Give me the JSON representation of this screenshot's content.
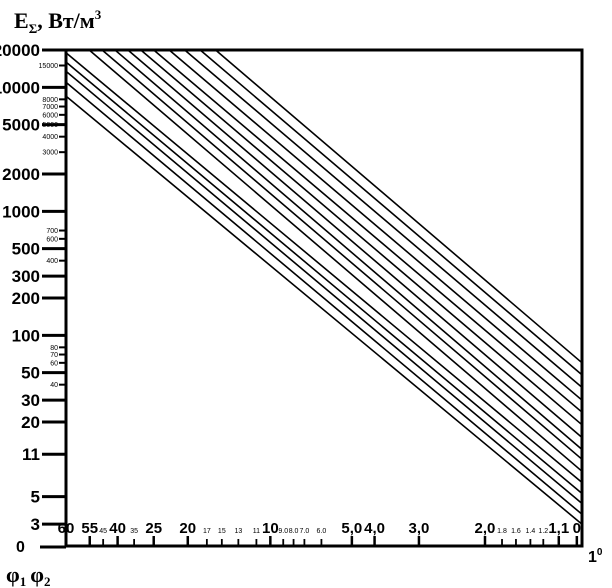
{
  "chart_data": {
    "type": "line",
    "title": "",
    "ylabel": {
      "main": "E",
      "sub": "Σ",
      "unit": ", Вт/м",
      "sup": "3"
    },
    "xlabel": {
      "phi1": "φ",
      "sub1": "1",
      "phi2": "φ",
      "sub2": "2"
    },
    "x_end_label": {
      "base": "1",
      "sup": "0"
    },
    "y_zero_label": "0",
    "yscale": "log",
    "ylim": [
      2,
      20000
    ],
    "xlim": [
      0,
      1
    ],
    "y_ticks_major": [
      "20000",
      "10000",
      "5000",
      "2000",
      "1000",
      "500",
      "300",
      "200",
      "100",
      "50",
      "30",
      "20",
      "11",
      "5",
      "3"
    ],
    "y_ticks_minor": [
      "15000",
      "8000",
      "7000",
      "6000",
      "5000",
      "4000",
      "3000",
      "700",
      "600",
      "400",
      "80",
      "70",
      "60",
      "40"
    ],
    "x_ticks": [
      {
        "label": "60",
        "x": 0.0,
        "size": "big"
      },
      {
        "label": "55",
        "x": 0.046,
        "size": "big"
      },
      {
        "label": "45",
        "x": 0.072,
        "size": "small"
      },
      {
        "label": "40",
        "x": 0.1,
        "size": "big"
      },
      {
        "label": "35",
        "x": 0.132,
        "size": "small"
      },
      {
        "label": "25",
        "x": 0.17,
        "size": "big"
      },
      {
        "label": "20",
        "x": 0.236,
        "size": "big"
      },
      {
        "label": "17",
        "x": 0.273,
        "size": "small"
      },
      {
        "label": "15",
        "x": 0.302,
        "size": "small"
      },
      {
        "label": "13",
        "x": 0.334,
        "size": "small"
      },
      {
        "label": "11",
        "x": 0.369,
        "size": "small"
      },
      {
        "label": "10",
        "x": 0.396,
        "size": "big"
      },
      {
        "label": "9.0",
        "x": 0.421,
        "size": "small"
      },
      {
        "label": "8.0",
        "x": 0.441,
        "size": "small"
      },
      {
        "label": "7.0",
        "x": 0.462,
        "size": "small"
      },
      {
        "label": "6.0",
        "x": 0.495,
        "size": "small"
      },
      {
        "label": "5,0",
        "x": 0.554,
        "size": "big"
      },
      {
        "label": "4,0",
        "x": 0.598,
        "size": "big"
      },
      {
        "label": "3,0",
        "x": 0.684,
        "size": "big"
      },
      {
        "label": "2,0",
        "x": 0.812,
        "size": "big"
      },
      {
        "label": "1.8",
        "x": 0.845,
        "size": "small"
      },
      {
        "label": "1.6",
        "x": 0.872,
        "size": "small"
      },
      {
        "label": "1.4",
        "x": 0.9,
        "size": "small"
      },
      {
        "label": "1.2",
        "x": 0.925,
        "size": "small"
      },
      {
        "label": "1,1",
        "x": 0.955,
        "size": "big"
      },
      {
        "label": "0",
        "x": 0.99,
        "size": "big"
      }
    ],
    "series_count": 15,
    "series_note_y_at_left": [
      20000,
      20000,
      20000,
      20000,
      20000,
      20000,
      20000,
      20000,
      20000,
      20000,
      19000,
      16000,
      13500,
      11000,
      8500
    ],
    "series_note_y_at_right": [
      60,
      48,
      38,
      30,
      24,
      19,
      15,
      12,
      10,
      8,
      6.5,
      5.3,
      4.4,
      3.6,
      3.0
    ],
    "series": [
      {
        "x": [
          0.29,
          1.0
        ],
        "y": [
          20000,
          60
        ]
      },
      {
        "x": [
          0.26,
          1.0
        ],
        "y": [
          20000,
          48
        ]
      },
      {
        "x": [
          0.23,
          1.0
        ],
        "y": [
          20000,
          38
        ]
      },
      {
        "x": [
          0.2,
          1.0
        ],
        "y": [
          20000,
          30
        ]
      },
      {
        "x": [
          0.17,
          1.0
        ],
        "y": [
          20000,
          24
        ]
      },
      {
        "x": [
          0.145,
          1.0
        ],
        "y": [
          20000,
          19
        ]
      },
      {
        "x": [
          0.12,
          1.0
        ],
        "y": [
          20000,
          15
        ]
      },
      {
        "x": [
          0.095,
          1.0
        ],
        "y": [
          20000,
          12
        ]
      },
      {
        "x": [
          0.07,
          1.0
        ],
        "y": [
          20000,
          10
        ]
      },
      {
        "x": [
          0.045,
          1.0
        ],
        "y": [
          20000,
          8
        ]
      },
      {
        "x": [
          0.0,
          1.0
        ],
        "y": [
          19000,
          6.5
        ]
      },
      {
        "x": [
          0.0,
          1.0
        ],
        "y": [
          16000,
          5.3
        ]
      },
      {
        "x": [
          0.0,
          1.0
        ],
        "y": [
          13500,
          4.4
        ]
      },
      {
        "x": [
          0.0,
          1.0
        ],
        "y": [
          11000,
          3.6
        ]
      },
      {
        "x": [
          0.0,
          1.0
        ],
        "y": [
          8500,
          3.0
        ]
      }
    ]
  }
}
